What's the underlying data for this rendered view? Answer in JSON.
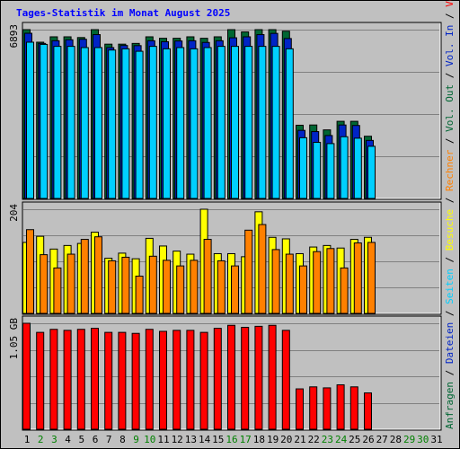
{
  "title": "Tages-Statistik im Monat August 2025",
  "colors": {
    "anfragen": "#006633",
    "dateien": "#0024c6",
    "seiten": "#00cfff",
    "besuche": "#ffff00",
    "rechner": "#ff8000",
    "volumen": "#ff0000",
    "weekend_label": "#008000",
    "weekday_label": "#000000"
  },
  "chart_data": [
    {
      "type": "bar",
      "panel": "hits",
      "ymax_label": "6893",
      "ylim": [
        0,
        6893
      ],
      "grid": true,
      "legend": [
        {
          "name": "Anfragen",
          "color": "#006633"
        },
        {
          "name": "Dateien",
          "color": "#0024c6"
        },
        {
          "name": "Seiten",
          "color": "#00cfff"
        }
      ],
      "x": [
        "1",
        "2",
        "3",
        "4",
        "5",
        "6",
        "7",
        "8",
        "9",
        "10",
        "11",
        "12",
        "13",
        "14",
        "15",
        "16",
        "17",
        "18",
        "19",
        "20",
        "21",
        "22",
        "23",
        "24",
        "25",
        "26",
        "27",
        "28",
        "29",
        "30",
        "31"
      ],
      "weekend": [
        false,
        true,
        true,
        false,
        false,
        false,
        false,
        false,
        true,
        true,
        false,
        false,
        false,
        false,
        false,
        true,
        true,
        false,
        false,
        false,
        false,
        false,
        true,
        true,
        false,
        false,
        false,
        false,
        true,
        true,
        false
      ],
      "series": [
        {
          "name": "Anfragen",
          "values": [
            6893,
            6380,
            6600,
            6600,
            6570,
            6893,
            6300,
            6300,
            6330,
            6600,
            6540,
            6540,
            6600,
            6540,
            6600,
            6893,
            6800,
            6893,
            6893,
            6830,
            2990,
            3000,
            2800,
            3150,
            3150,
            2540,
            null,
            null,
            null,
            null,
            null
          ]
        },
        {
          "name": "Dateien",
          "values": [
            6745,
            6330,
            6440,
            6480,
            6500,
            6690,
            6160,
            6245,
            6240,
            6440,
            6400,
            6430,
            6440,
            6370,
            6440,
            6560,
            6600,
            6690,
            6740,
            6530,
            2780,
            2730,
            2570,
            3000,
            2980,
            2370,
            null,
            null,
            null,
            null,
            null
          ]
        },
        {
          "name": "Seiten",
          "values": [
            6380,
            6290,
            6210,
            6210,
            6160,
            6160,
            6060,
            6110,
            6010,
            6210,
            6110,
            6160,
            6110,
            6160,
            6210,
            6210,
            6210,
            6210,
            6210,
            6110,
            2480,
            2290,
            2240,
            2520,
            2460,
            2130,
            null,
            null,
            null,
            null,
            null
          ]
        }
      ]
    },
    {
      "type": "bar",
      "panel": "visits",
      "ymax_label": "204",
      "ylim": [
        0,
        204
      ],
      "grid": true,
      "legend": [
        {
          "name": "Besuche",
          "color": "#ffff00"
        },
        {
          "name": "Rechner",
          "color": "#ff8000"
        }
      ],
      "series": [
        {
          "name": "Besuche",
          "values": [
            139,
            151,
            126,
            133,
            137,
            159,
            108,
            118,
            107,
            147,
            132,
            122,
            116,
            204,
            117,
            117,
            111,
            199,
            149,
            146,
            117,
            130,
            133,
            128,
            145,
            149,
            null,
            null,
            null,
            null,
            null
          ]
        },
        {
          "name": "Rechner",
          "values": [
            164,
            115,
            89,
            116,
            145,
            150,
            103,
            110,
            73,
            112,
            104,
            93,
            104,
            145,
            103,
            93,
            163,
            174,
            125,
            116,
            93,
            121,
            127,
            89,
            138,
            139,
            null,
            null,
            null,
            null,
            null
          ]
        }
      ]
    },
    {
      "type": "bar",
      "panel": "volume",
      "ymax_label": "1.05 GB",
      "ylim": [
        0,
        1.05
      ],
      "grid": true,
      "legend": [
        {
          "name": "Volumen",
          "color": "#ff0000"
        }
      ],
      "series": [
        {
          "name": "Volumen",
          "values": [
            1.05,
            0.96,
            0.99,
            0.98,
            0.99,
            1.0,
            0.96,
            0.96,
            0.95,
            0.99,
            0.97,
            0.98,
            0.98,
            0.96,
            1.0,
            1.03,
            1.01,
            1.02,
            1.03,
            0.98,
            0.4,
            0.42,
            0.41,
            0.44,
            0.42,
            0.36,
            null,
            null,
            null,
            null,
            null
          ]
        }
      ]
    }
  ],
  "right_labels": [
    {
      "text": "Anfragen",
      "color": "#006633"
    },
    {
      "text": " / ",
      "color": "#000000"
    },
    {
      "text": "Dateien",
      "color": "#0024c6"
    },
    {
      "text": " / ",
      "color": "#000000"
    },
    {
      "text": "Seiten",
      "color": "#00cfff"
    },
    {
      "text": " / ",
      "color": "#000000"
    },
    {
      "text": "Besuche",
      "color": "#ffff00"
    },
    {
      "text": " / ",
      "color": "#000000"
    },
    {
      "text": "Rechner",
      "color": "#ff8000"
    },
    {
      "text": " / ",
      "color": "#000000"
    },
    {
      "text": "Vol. Out",
      "color": "#006633"
    },
    {
      "text": " / ",
      "color": "#000000"
    },
    {
      "text": "Vol. In",
      "color": "#0024c6"
    },
    {
      "text": " / ",
      "color": "#000000"
    },
    {
      "text": "Volumen",
      "color": "#ff0000"
    }
  ]
}
